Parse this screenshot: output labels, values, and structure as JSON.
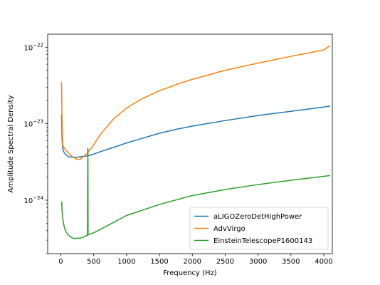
{
  "chart_data": {
    "type": "line",
    "title": "",
    "xlabel": "Frequency (Hz)",
    "ylabel": "Amplitude Spectral Density",
    "xlim": [
      -200,
      4130
    ],
    "ylim": [
      2e-25,
      1.48e-22
    ],
    "yscale": "log",
    "grid": false,
    "legend_position": "lower-right",
    "x_ticks": [
      {
        "value": 0,
        "label": "0"
      },
      {
        "value": 500,
        "label": "500"
      },
      {
        "value": 1000,
        "label": "1000"
      },
      {
        "value": 1500,
        "label": "1500"
      },
      {
        "value": 2000,
        "label": "2000"
      },
      {
        "value": 2500,
        "label": "2500"
      },
      {
        "value": 3000,
        "label": "3000"
      },
      {
        "value": 3500,
        "label": "3500"
      },
      {
        "value": 4000,
        "label": "4000"
      }
    ],
    "y_ticks": [
      {
        "value": 1e-24,
        "mantissa": "10",
        "exponent": "−24"
      },
      {
        "value": 1e-23,
        "mantissa": "10",
        "exponent": "−23"
      },
      {
        "value": 1e-22,
        "mantissa": "10",
        "exponent": "−22"
      }
    ],
    "series": [
      {
        "name": "aLIGOZeroDetHighPower",
        "color": "#1f77b4",
        "x": [
          10,
          20,
          30,
          50,
          80,
          120,
          180,
          250,
          300,
          400,
          500,
          600,
          800,
          1000,
          1200,
          1500,
          1800,
          2000,
          2500,
          3000,
          3500,
          4000,
          4096
        ],
        "y": [
          1.3e-23,
          6e-24,
          4.7e-24,
          4.2e-24,
          3.9e-24,
          3.7e-24,
          3.65e-24,
          3.65e-24,
          3.7e-24,
          3.8e-24,
          4e-24,
          4.3e-24,
          4.9e-24,
          5.6e-24,
          6.3e-24,
          7.5e-24,
          8.6e-24,
          9.3e-24,
          1.1e-23,
          1.28e-23,
          1.45e-23,
          1.65e-23,
          1.7e-23
        ]
      },
      {
        "name": "AdvVirgo",
        "color": "#ff7f0e",
        "x": [
          10,
          20,
          30,
          50,
          80,
          120,
          180,
          250,
          300,
          400,
          500,
          600,
          800,
          1000,
          1200,
          1500,
          1800,
          2000,
          2500,
          3000,
          3500,
          4000,
          4096
        ],
        "y": [
          3.5e-23,
          9e-24,
          5.2e-24,
          4.8e-24,
          4.5e-24,
          4.1e-24,
          3.7e-24,
          3.4e-24,
          3.45e-24,
          4.1e-24,
          5.3e-24,
          7.2e-24,
          1.15e-23,
          1.6e-23,
          2.05e-23,
          2.7e-23,
          3.35e-23,
          3.8e-23,
          5e-23,
          6.2e-23,
          7.6e-23,
          9.2e-23,
          1.05e-22
        ]
      },
      {
        "name": "EinsteinTelescopeP1600143",
        "color": "#2ca02c",
        "x": [
          10,
          15,
          20,
          40,
          60,
          100,
          150,
          200,
          300,
          350,
          405,
          410,
          412,
          415,
          420,
          500,
          700,
          1000,
          1500,
          2000,
          2500,
          3000,
          3500,
          4000,
          4096
        ],
        "y": [
          8.5e-25,
          9.4e-25,
          7e-25,
          5e-25,
          4.2e-25,
          3.6e-25,
          3.3e-25,
          3.15e-25,
          3.2e-25,
          3.3e-25,
          3.5e-25,
          4.8e-24,
          4.7e-24,
          3.5e-25,
          3.55e-25,
          3.75e-25,
          4.6e-25,
          6.3e-25,
          8.8e-25,
          1.15e-24,
          1.38e-24,
          1.6e-24,
          1.82e-24,
          2.05e-24,
          2.1e-24
        ]
      }
    ]
  }
}
